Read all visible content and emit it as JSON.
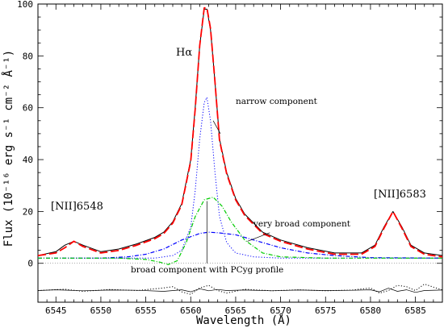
{
  "chart_data": {
    "type": "line",
    "xlabel": "Wavelength (Å)",
    "ylabel": "Flux (10⁻¹⁶ erg s⁻¹ cm⁻² Å⁻¹)",
    "xlim": [
      6543,
      6588
    ],
    "ylim": [
      -15,
      100
    ],
    "xticks": [
      6545,
      6550,
      6555,
      6560,
      6565,
      6570,
      6575,
      6580,
      6585
    ],
    "yticks": [
      0,
      20,
      40,
      60,
      80,
      100
    ],
    "grid": false,
    "annotations": {
      "halpha": "Hα",
      "narrow": "narrow component",
      "very_broad": "very broad component",
      "broad": "broad component with PCyg profile",
      "nii_6548": "[NII]6548",
      "nii_6583": "[NII]6583"
    },
    "series": [
      {
        "role": "observed spectrum",
        "style": "solid",
        "color": "#000000",
        "x": [
          6543,
          6545,
          6546,
          6547,
          6548,
          6550,
          6552,
          6554,
          6556,
          6557,
          6558,
          6559,
          6560,
          6560.5,
          6561,
          6561.5,
          6561.8,
          6562.2,
          6562.7,
          6563.2,
          6564,
          6565,
          6566,
          6568,
          6570,
          6573,
          6576,
          6579,
          6580.5,
          6581.5,
          6582.5,
          6583.5,
          6584.5,
          6586,
          6588
        ],
        "y": [
          3,
          4.5,
          7,
          8.5,
          7,
          4.5,
          5.5,
          7.5,
          10,
          12,
          16,
          23,
          40,
          60,
          84,
          98,
          98,
          90,
          70,
          48,
          35,
          25,
          19,
          12,
          9,
          6,
          4,
          4,
          7,
          14,
          20,
          14,
          7,
          4,
          3
        ]
      },
      {
        "role": "total fit",
        "style": "dashed",
        "color": "#ff0000",
        "x": [
          6543,
          6545,
          6546,
          6547,
          6548,
          6550,
          6552,
          6554,
          6556,
          6557,
          6558,
          6559,
          6560,
          6560.5,
          6561,
          6561.5,
          6561.8,
          6562.2,
          6562.7,
          6563.2,
          6564,
          6565,
          6566,
          6568,
          6570,
          6573,
          6576,
          6579,
          6580.5,
          6581.5,
          6582.5,
          6583.5,
          6584.5,
          6586,
          6588
        ],
        "y": [
          3,
          4,
          6,
          8.5,
          6.5,
          4,
          5,
          7,
          9.5,
          11.5,
          15.5,
          22.5,
          39.5,
          59.5,
          84,
          98.5,
          98.5,
          90.5,
          70,
          47.5,
          34.5,
          24.5,
          18.5,
          11.5,
          8.5,
          5.5,
          3.5,
          3.5,
          6.5,
          13.5,
          20,
          13.5,
          6.5,
          3.5,
          2.5
        ]
      },
      {
        "role": "narrow component",
        "style": "dotted",
        "color": "#0000ff",
        "x": [
          6543,
          6556,
          6558,
          6559,
          6560,
          6560.5,
          6561,
          6561.5,
          6561.8,
          6562.2,
          6562.7,
          6563.2,
          6564,
          6565,
          6567,
          6570,
          6588
        ],
        "y": [
          2,
          2,
          3,
          5,
          14,
          28,
          48,
          62,
          64,
          55,
          35,
          18,
          8,
          4,
          2.5,
          2,
          2
        ]
      },
      {
        "role": "very broad component",
        "style": "dash-dot",
        "color": "#0000ff",
        "x": [
          6543,
          6550,
          6553,
          6555,
          6557,
          6559,
          6561,
          6562,
          6563,
          6565,
          6567,
          6570,
          6573,
          6576,
          6580,
          6588
        ],
        "y": [
          2,
          2,
          2.5,
          3.5,
          5.5,
          9,
          11.5,
          12,
          11.8,
          11,
          9,
          6,
          4,
          3,
          2.2,
          2
        ]
      },
      {
        "role": "broad component with PCyg profile",
        "style": "dash-dot",
        "color": "#00cc00",
        "x": [
          6543,
          6552,
          6555,
          6556.5,
          6557.5,
          6558.5,
          6559.5,
          6560.5,
          6561.5,
          6562.5,
          6563.5,
          6564.5,
          6566,
          6568,
          6570,
          6575,
          6588
        ],
        "y": [
          2,
          2,
          1.5,
          0.5,
          -0.5,
          1,
          8,
          18,
          24.5,
          25.5,
          22,
          16,
          9,
          4,
          2.5,
          2,
          2
        ]
      },
      {
        "role": "residuals",
        "style": "solid",
        "color": "#000000",
        "x": [
          6543,
          6545,
          6548,
          6551,
          6554,
          6557,
          6559,
          6560,
          6561,
          6562,
          6563,
          6564,
          6566,
          6569,
          6572,
          6575,
          6578,
          6580,
          6581,
          6582,
          6583,
          6584,
          6585,
          6586,
          6588
        ],
        "y": [
          -10.5,
          -10.2,
          -10.6,
          -10.3,
          -10.4,
          -10.8,
          -10.2,
          -11,
          -9.8,
          -10.6,
          -10.1,
          -10.5,
          -10.3,
          -10.6,
          -10.3,
          -10.5,
          -10.4,
          -10.2,
          -11,
          -9.6,
          -10.8,
          -10.2,
          -11.2,
          -10.5,
          -10.3
        ]
      },
      {
        "role": "residuals (alternate fit)",
        "style": "dotted",
        "color": "#000000",
        "x": [
          6543,
          6546,
          6548,
          6551,
          6554,
          6557,
          6558,
          6559,
          6560,
          6561,
          6562,
          6563,
          6564,
          6566,
          6569,
          6572,
          6575,
          6578,
          6580,
          6581,
          6582,
          6583,
          6584,
          6585,
          6586,
          6588
        ],
        "y": [
          -10.5,
          -10,
          -10.8,
          -10.1,
          -10.5,
          -9.5,
          -9,
          -11,
          -12,
          -9.5,
          -8.5,
          -10.5,
          -11.5,
          -10,
          -10.6,
          -10.2,
          -10.6,
          -10.3,
          -9.5,
          -11.5,
          -10.5,
          -8.5,
          -9,
          -10.5,
          -8,
          -10.3
        ]
      }
    ]
  }
}
